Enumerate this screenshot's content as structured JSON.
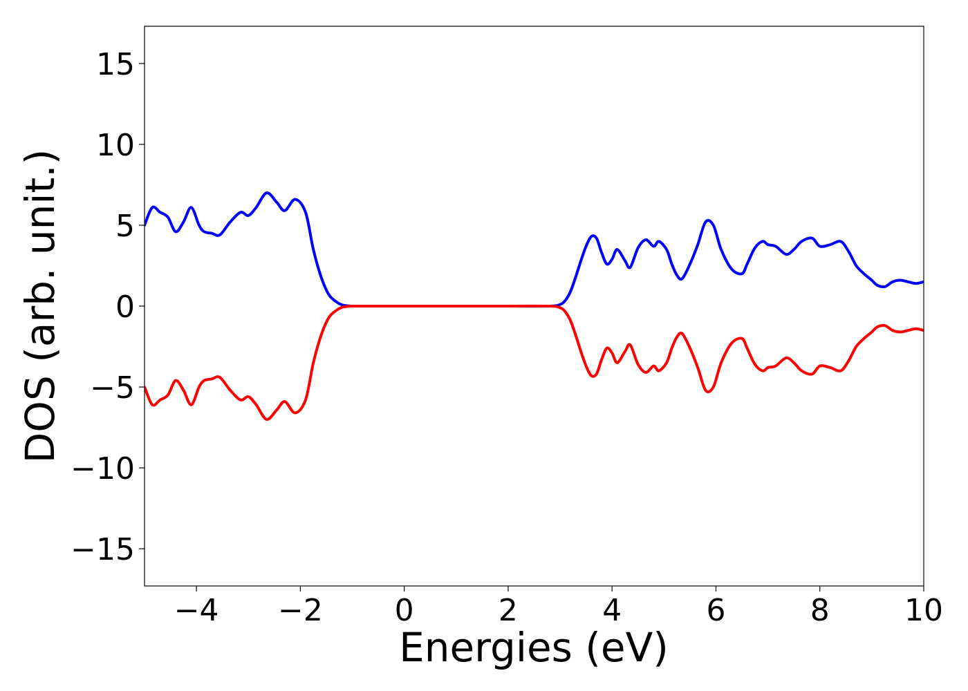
{
  "chart_data": {
    "type": "line",
    "xlabel": "Energies (eV)",
    "ylabel": "DOS (arb. unit.)",
    "xlim": [
      -5,
      10
    ],
    "ylim": [
      -17.3,
      17.3
    ],
    "xticks": [
      {
        "value": -4,
        "label": "−4"
      },
      {
        "value": -2,
        "label": "−2"
      },
      {
        "value": 0,
        "label": "0"
      },
      {
        "value": 2,
        "label": "2"
      },
      {
        "value": 4,
        "label": "4"
      },
      {
        "value": 6,
        "label": "6"
      },
      {
        "value": 8,
        "label": "8"
      },
      {
        "value": 10,
        "label": "10"
      }
    ],
    "yticks": [
      {
        "value": -15,
        "label": "−15"
      },
      {
        "value": -10,
        "label": "−10"
      },
      {
        "value": -5,
        "label": "−5"
      },
      {
        "value": 0,
        "label": "0"
      },
      {
        "value": 5,
        "label": "5"
      },
      {
        "value": 10,
        "label": "10"
      },
      {
        "value": 15,
        "label": "15"
      }
    ],
    "grid": false,
    "legend": false,
    "series": [
      {
        "color": "#0000ff",
        "x": [
          -5.0,
          -4.85,
          -4.7,
          -4.55,
          -4.4,
          -4.25,
          -4.1,
          -3.95,
          -3.85,
          -3.7,
          -3.55,
          -3.35,
          -3.15,
          -3.0,
          -2.85,
          -2.65,
          -2.45,
          -2.3,
          -2.1,
          -1.9,
          -1.75,
          -1.6,
          -1.45,
          -1.3,
          -1.2,
          -1.1,
          -1.0,
          -0.9,
          -0.8,
          -0.7,
          -0.6,
          -0.5,
          0.0,
          1.0,
          2.0,
          2.8,
          3.0,
          3.1,
          3.2,
          3.3,
          3.4,
          3.5,
          3.6,
          3.7,
          3.8,
          3.9,
          4.0,
          4.1,
          4.25,
          4.35,
          4.5,
          4.65,
          4.8,
          4.9,
          5.05,
          5.15,
          5.25,
          5.35,
          5.5,
          5.65,
          5.8,
          5.95,
          6.1,
          6.3,
          6.5,
          6.6,
          6.75,
          6.9,
          7.0,
          7.15,
          7.35,
          7.5,
          7.65,
          7.85,
          8.0,
          8.2,
          8.4,
          8.55,
          8.7,
          8.85,
          9.0,
          9.1,
          9.25,
          9.4,
          9.55,
          9.7,
          9.85,
          10.0
        ],
        "y": [
          5.0,
          6.1,
          5.8,
          5.5,
          4.6,
          5.2,
          6.1,
          5.0,
          4.6,
          4.5,
          4.4,
          5.2,
          5.8,
          5.6,
          6.1,
          7.0,
          6.4,
          5.9,
          6.6,
          5.8,
          3.5,
          1.8,
          0.7,
          0.25,
          0.08,
          0.02,
          0.0,
          0.0,
          0.0,
          0.0,
          0.0,
          0.0,
          0.0,
          0.0,
          0.0,
          0.0,
          0.1,
          0.35,
          0.9,
          1.8,
          2.8,
          3.7,
          4.3,
          4.2,
          3.3,
          2.6,
          2.9,
          3.5,
          2.8,
          2.4,
          3.6,
          4.1,
          3.7,
          4.0,
          3.5,
          2.6,
          1.9,
          1.7,
          2.6,
          3.8,
          5.2,
          5.0,
          3.5,
          2.3,
          2.0,
          2.6,
          3.6,
          4.0,
          3.8,
          3.7,
          3.2,
          3.5,
          4.0,
          4.2,
          3.7,
          3.8,
          4.0,
          3.4,
          2.5,
          2.0,
          1.6,
          1.3,
          1.2,
          1.5,
          1.6,
          1.5,
          1.4,
          1.5
        ]
      },
      {
        "color": "#ff0000",
        "x": [
          -5.0,
          -4.85,
          -4.7,
          -4.55,
          -4.4,
          -4.25,
          -4.1,
          -3.95,
          -3.85,
          -3.7,
          -3.55,
          -3.35,
          -3.15,
          -3.0,
          -2.85,
          -2.65,
          -2.45,
          -2.3,
          -2.1,
          -1.9,
          -1.75,
          -1.6,
          -1.45,
          -1.3,
          -1.2,
          -1.1,
          -1.0,
          -0.9,
          -0.8,
          -0.7,
          -0.6,
          -0.5,
          0.0,
          1.0,
          2.0,
          2.8,
          3.0,
          3.1,
          3.2,
          3.3,
          3.4,
          3.5,
          3.6,
          3.7,
          3.8,
          3.9,
          4.0,
          4.1,
          4.25,
          4.35,
          4.5,
          4.65,
          4.8,
          4.9,
          5.05,
          5.15,
          5.25,
          5.35,
          5.5,
          5.65,
          5.8,
          5.95,
          6.1,
          6.3,
          6.5,
          6.6,
          6.75,
          6.9,
          7.0,
          7.15,
          7.35,
          7.5,
          7.65,
          7.85,
          8.0,
          8.2,
          8.4,
          8.55,
          8.7,
          8.85,
          9.0,
          9.1,
          9.25,
          9.4,
          9.55,
          9.7,
          9.85,
          10.0
        ],
        "y": [
          -5.0,
          -6.1,
          -5.8,
          -5.5,
          -4.6,
          -5.2,
          -6.1,
          -5.0,
          -4.6,
          -4.5,
          -4.4,
          -5.2,
          -5.8,
          -5.6,
          -6.1,
          -7.0,
          -6.4,
          -5.9,
          -6.6,
          -5.8,
          -3.5,
          -1.8,
          -0.7,
          -0.25,
          -0.08,
          -0.02,
          0.0,
          0.0,
          0.0,
          0.0,
          0.0,
          0.0,
          0.0,
          0.0,
          0.0,
          0.0,
          -0.1,
          -0.35,
          -0.9,
          -1.8,
          -2.8,
          -3.7,
          -4.3,
          -4.2,
          -3.3,
          -2.6,
          -2.9,
          -3.5,
          -2.8,
          -2.4,
          -3.6,
          -4.1,
          -3.7,
          -4.0,
          -3.5,
          -2.6,
          -1.9,
          -1.7,
          -2.6,
          -3.8,
          -5.2,
          -5.0,
          -3.5,
          -2.3,
          -2.0,
          -2.6,
          -3.6,
          -4.0,
          -3.8,
          -3.7,
          -3.2,
          -3.5,
          -4.0,
          -4.2,
          -3.7,
          -3.8,
          -4.0,
          -3.4,
          -2.5,
          -2.0,
          -1.6,
          -1.3,
          -1.2,
          -1.5,
          -1.6,
          -1.5,
          -1.4,
          -1.5
        ]
      }
    ]
  }
}
